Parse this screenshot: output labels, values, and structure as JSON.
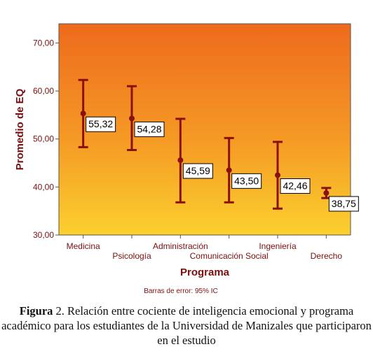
{
  "chart_data": {
    "type": "errorbar",
    "xlabel": "Programa",
    "ylabel": "Promedio de EQ",
    "ylim": [
      30,
      74
    ],
    "yticks": [
      30,
      40,
      50,
      60,
      70
    ],
    "ytick_labels": [
      "30,00",
      "40,00",
      "50,00",
      "60,00",
      "70,00"
    ],
    "categories": [
      "Medicina",
      "Psicología",
      "Administración",
      "Comunicación Social",
      "Ingeniería",
      "Derecho"
    ],
    "means": [
      55.32,
      54.28,
      45.59,
      43.5,
      42.46,
      38.75
    ],
    "mean_labels": [
      "55,32",
      "54,28",
      "45,59",
      "43,50",
      "42,46",
      "38,75"
    ],
    "ci_lower": [
      48.3,
      47.7,
      36.8,
      36.8,
      35.5,
      37.7
    ],
    "ci_upper": [
      62.3,
      61.0,
      54.2,
      50.2,
      49.4,
      39.8
    ],
    "footnote": "Barras de error: 95% IC",
    "grid": false,
    "colors": {
      "bar": "#8b1010",
      "axis_text": "#7a0e0e",
      "background_top": "#ee6a1c",
      "background_bottom": "#fbd02e"
    }
  },
  "caption": {
    "prefix": "Figura",
    "text": " 2. Relación entre cociente de inteligencia emocional y programa académico para los estudiantes de la Universidad de Manizales que participaron en el estudio"
  }
}
